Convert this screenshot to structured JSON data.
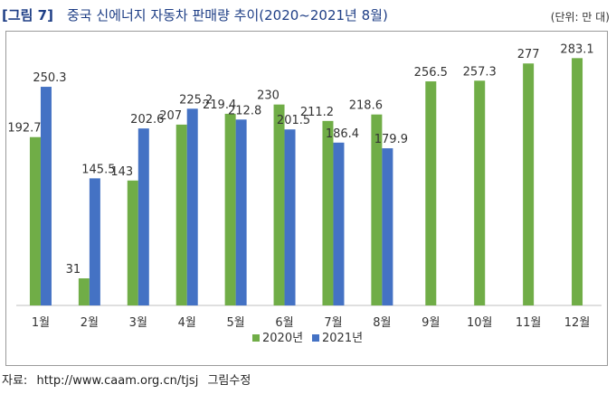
{
  "header": {
    "figure_tag": "[그림 7]",
    "title": "중국 신에너지 자동차 판매량 추이(2020~2021년 8월)",
    "unit": "(단위: 만 대)"
  },
  "source": {
    "label": "자료:",
    "url": "http://www.caam.org.cn/tjsj",
    "note": "그림수정"
  },
  "colors": {
    "series_2020": "#70ad47",
    "series_2021": "#4472c4"
  },
  "chart_data": {
    "type": "bar",
    "title": "중국 신에너지 자동차 판매량 추이(2020~2021년 8월)",
    "categories": [
      "1월",
      "2월",
      "3월",
      "4월",
      "5월",
      "6월",
      "7월",
      "8월",
      "9월",
      "10월",
      "11월",
      "12월"
    ],
    "series": [
      {
        "name": "2020년",
        "color": "#70ad47",
        "values": [
          192.7,
          31,
          143,
          207,
          219.4,
          230,
          211.2,
          218.6,
          256.5,
          257.3,
          277,
          283.1
        ]
      },
      {
        "name": "2021년",
        "color": "#4472c4",
        "values": [
          250.3,
          145.5,
          202.6,
          225.2,
          212.8,
          201.5,
          186.4,
          179.9,
          null,
          null,
          null,
          null
        ]
      }
    ],
    "data_labels": {
      "2020년": [
        "192.7",
        "31",
        "143",
        "207",
        "219.4",
        "230",
        "211.2",
        "218.6",
        "256.5",
        "257.3",
        "277",
        "283.1"
      ],
      "2021년": [
        "250.3",
        "145.5",
        "202.6",
        "225.2",
        "212.8",
        "201.5",
        "186.4",
        "179.9"
      ]
    },
    "ylim": [
      0,
      300
    ],
    "grid": false,
    "legend": "bottom"
  }
}
